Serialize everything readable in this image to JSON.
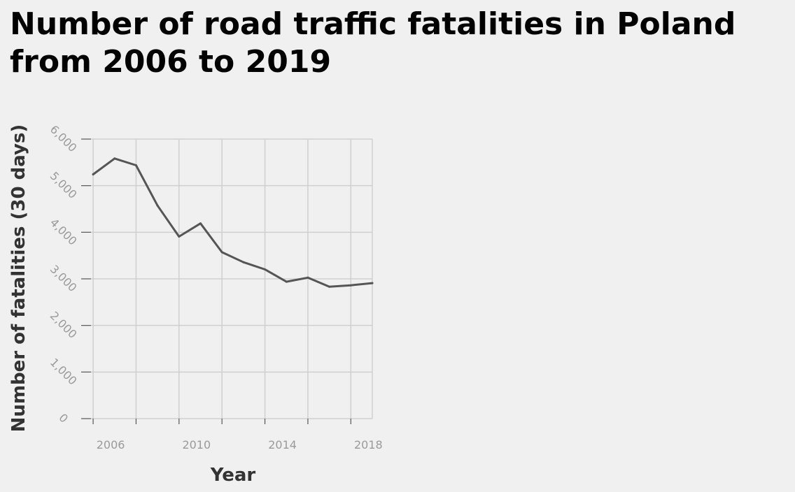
{
  "chart_data": {
    "type": "line",
    "title": "Number of road traffic fatalities in Poland from 2006 to 2019",
    "xlabel": "Year",
    "ylabel": "Number of fatalities (30 days)",
    "xlim": [
      2005.9,
      2019
    ],
    "ylim": [
      0,
      6000
    ],
    "x_ticks": [
      2006,
      2010,
      2014,
      2018
    ],
    "x_tick_labels": [
      "2006",
      "2010",
      "2014",
      "2018"
    ],
    "y_ticks": [
      0,
      1000,
      2000,
      3000,
      4000,
      5000,
      6000
    ],
    "y_tick_labels": [
      "0",
      "1,000",
      "2,000",
      "3,000",
      "4,000",
      "5,000",
      "6,000"
    ],
    "grid": true,
    "line_color": "#555555",
    "series": [
      {
        "x": [
          2006,
          2007,
          2008,
          2009,
          2010,
          2011,
          2012,
          2013,
          2014,
          2015,
          2016,
          2017,
          2018,
          2019
        ],
        "y": [
          5243,
          5583,
          5437,
          4572,
          3907,
          4189,
          3571,
          3357,
          3202,
          2938,
          3026,
          2831,
          2862,
          2909
        ]
      }
    ]
  }
}
